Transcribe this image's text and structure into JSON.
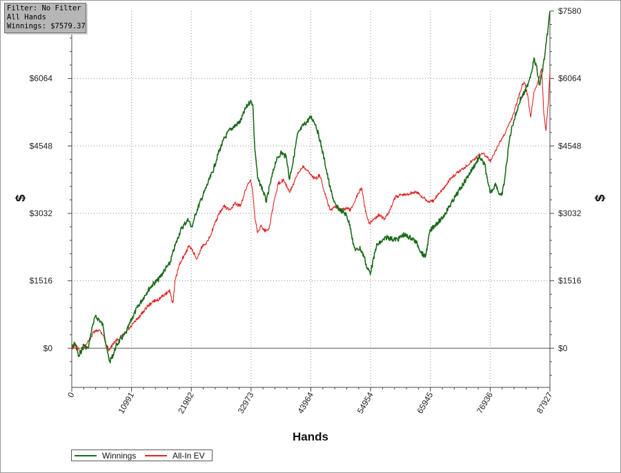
{
  "info_box": {
    "filter": "Filter: No Filter",
    "scope": "All Hands",
    "winnings": "Winnings: $7579.37"
  },
  "colors": {
    "winnings": "#1a6b1a",
    "allin_ev": "#e02020",
    "grid": "#8a8a8a",
    "axis": "#444444"
  },
  "chart_data": {
    "type": "line",
    "xlabel": "Hands",
    "ylabel": "$",
    "ylabel_right": "$",
    "xlim": [
      0,
      87927
    ],
    "ylim": [
      -880,
      7580
    ],
    "x_ticks": [
      0,
      10991,
      21982,
      32973,
      43964,
      54954,
      65945,
      76936,
      87927
    ],
    "x_tick_labels": [
      "0",
      "10991",
      "21982",
      "32973",
      "43964",
      "54954",
      "65945",
      "76936",
      "87927"
    ],
    "y_ticks": [
      0,
      1516,
      3032,
      4548,
      6064,
      7580
    ],
    "y_tick_labels": [
      "$0",
      "$1516",
      "$3032",
      "$4548",
      "$6064",
      "$7580"
    ],
    "grid": true,
    "legend": "bottom-left",
    "series": [
      {
        "name": "Winnings",
        "color": "#1a6b1a",
        "x": [
          0,
          600,
          1300,
          2200,
          3000,
          3800,
          4300,
          5000,
          5800,
          6300,
          6600,
          7000,
          7600,
          8200,
          9000,
          10000,
          11000,
          12000,
          13000,
          14000,
          15000,
          16000,
          17000,
          18000,
          19000,
          20000,
          20800,
          21500,
          22000,
          23000,
          24000,
          25000,
          26000,
          27000,
          28000,
          29000,
          30000,
          31000,
          32000,
          32800,
          33300,
          33600,
          34200,
          35000,
          35800,
          36500,
          37500,
          38500,
          39500,
          40000,
          40700,
          41500,
          42500,
          43300,
          44000,
          44800,
          45600,
          46500,
          47500,
          48500,
          49500,
          50500,
          51300,
          51800,
          52300,
          53000,
          53800,
          54300,
          54900,
          55500,
          56000,
          57000,
          58000,
          59000,
          60000,
          61000,
          62000,
          62800,
          63500,
          64300,
          65000,
          65400,
          65800,
          66300,
          67000,
          68000,
          69000,
          70000,
          71000,
          72000,
          73000,
          74000,
          75000,
          75500,
          76000,
          76500,
          77000,
          77500,
          78000,
          78500,
          79000,
          79500,
          80000,
          80500,
          81000,
          81500,
          82000,
          82500,
          83000,
          83500,
          84000,
          84500,
          85000,
          85500,
          86000,
          86500,
          87000,
          87500,
          87927
        ],
        "y": [
          0,
          120,
          -200,
          80,
          -20,
          500,
          700,
          650,
          500,
          80,
          -120,
          -300,
          -150,
          60,
          200,
          350,
          650,
          900,
          1100,
          1300,
          1450,
          1550,
          1750,
          1900,
          2300,
          2650,
          2800,
          2900,
          2700,
          3100,
          3400,
          3700,
          4000,
          4400,
          4700,
          4900,
          5000,
          5100,
          5400,
          5550,
          5500,
          4600,
          3800,
          3600,
          3300,
          3700,
          4200,
          4400,
          4300,
          3800,
          4200,
          4800,
          5000,
          5100,
          5200,
          5050,
          4700,
          4200,
          3600,
          3200,
          3100,
          3000,
          2700,
          2300,
          2200,
          2250,
          2050,
          1800,
          1700,
          2000,
          2300,
          2400,
          2500,
          2450,
          2450,
          2550,
          2500,
          2450,
          2350,
          2150,
          2050,
          2300,
          2600,
          2700,
          2800,
          2900,
          3100,
          3300,
          3500,
          3700,
          3900,
          4100,
          4300,
          4200,
          4100,
          3700,
          3500,
          3600,
          3700,
          3500,
          3400,
          3700,
          4200,
          4700,
          5000,
          5200,
          5400,
          5600,
          5700,
          5800,
          6000,
          6200,
          6500,
          6300,
          5900,
          6200,
          6600,
          7100,
          7579
        ]
      },
      {
        "name": "All-In EV",
        "color": "#e02020",
        "x": [
          0,
          800,
          1600,
          2400,
          3200,
          4000,
          5000,
          5800,
          6300,
          6800,
          7400,
          8000,
          9000,
          10000,
          11000,
          12000,
          13000,
          14000,
          15000,
          16000,
          17000,
          18000,
          18600,
          19000,
          19600,
          20200,
          20800,
          21500,
          22200,
          23000,
          24000,
          25000,
          26000,
          27000,
          28000,
          29000,
          30000,
          31000,
          31800,
          32400,
          32900,
          33300,
          33700,
          34200,
          34800,
          35500,
          36300,
          37200,
          38000,
          39000,
          40000,
          40800,
          41500,
          42500,
          43300,
          44000,
          44800,
          45600,
          46500,
          47500,
          48500,
          49500,
          50500,
          51300,
          52000,
          52700,
          53300,
          54000,
          54700,
          55500,
          56500,
          57500,
          58500,
          59500,
          60500,
          61500,
          62500,
          63500,
          64500,
          65500,
          66500,
          67500,
          68500,
          69500,
          70500,
          71500,
          72500,
          73500,
          74500,
          75500,
          76300,
          77000,
          77800,
          78600,
          79500,
          80300,
          81000,
          81800,
          82500,
          83200,
          83800,
          84400,
          85000,
          85500,
          86000,
          86400,
          86800,
          87200,
          87600,
          87927
        ],
        "y": [
          0,
          60,
          -100,
          50,
          180,
          350,
          420,
          300,
          80,
          -30,
          50,
          160,
          250,
          350,
          500,
          650,
          800,
          950,
          1050,
          1100,
          1200,
          1300,
          1000,
          1500,
          1800,
          2000,
          2100,
          2300,
          2200,
          2000,
          2300,
          2400,
          2700,
          3000,
          3200,
          3100,
          3250,
          3200,
          3500,
          3700,
          3800,
          3500,
          2900,
          2600,
          2750,
          2650,
          2700,
          3300,
          3700,
          3800,
          3500,
          3700,
          3900,
          4100,
          4000,
          3900,
          3800,
          3900,
          3500,
          3100,
          3200,
          3100,
          3150,
          3100,
          3300,
          3500,
          3600,
          3100,
          2800,
          2900,
          3000,
          2900,
          3100,
          3400,
          3450,
          3450,
          3500,
          3500,
          3400,
          3300,
          3300,
          3500,
          3600,
          3800,
          3900,
          4000,
          4100,
          4200,
          4300,
          4400,
          4300,
          4200,
          4400,
          4600,
          4800,
          5000,
          5200,
          5500,
          5800,
          6000,
          5700,
          5200,
          5800,
          5900,
          6100,
          6300,
          5300,
          4900,
          5500,
          6200
        ]
      }
    ]
  }
}
